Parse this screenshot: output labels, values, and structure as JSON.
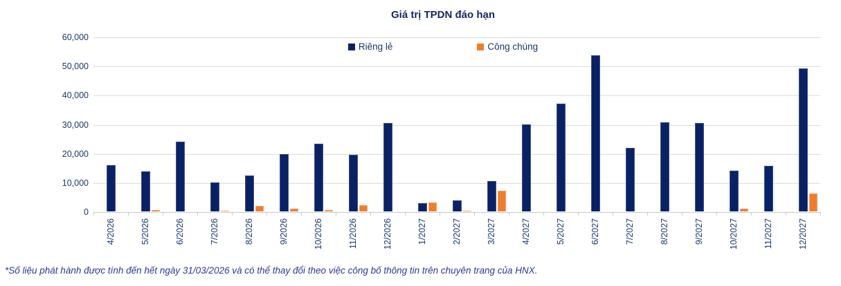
{
  "chart_data": {
    "type": "bar",
    "title": "Giá trị TPDN đáo hạn",
    "categories": [
      "4/2026",
      "5/2026",
      "6/2026",
      "7/2026",
      "8/2026",
      "9/2026",
      "10/2026",
      "11/2026",
      "12/2026",
      "1/2027",
      "2/2027",
      "3/2027",
      "4/2027",
      "5/2027",
      "6/2027",
      "7/2027",
      "8/2027",
      "9/2027",
      "10/2027",
      "11/2027",
      "12/2027"
    ],
    "series": [
      {
        "name": "Riêng lẻ",
        "color": "#0a2164",
        "values": [
          15800,
          13800,
          23900,
          9900,
          12400,
          19600,
          23300,
          19500,
          30300,
          2900,
          3800,
          10500,
          29800,
          37000,
          53500,
          21900,
          30600,
          30400,
          14100,
          15600,
          49100
        ]
      },
      {
        "name": "Công chúng",
        "color": "#ee7d2e",
        "values": [
          0,
          400,
          0,
          300,
          2000,
          1000,
          500,
          2100,
          0,
          3000,
          300,
          7100,
          0,
          0,
          0,
          0,
          0,
          0,
          1000,
          0,
          6200
        ]
      }
    ],
    "xlabel": "",
    "ylabel": "",
    "ylim": [
      0,
      60000
    ],
    "ytick_step": 10000,
    "ytick_labels": [
      "0",
      "10,000",
      "20,000",
      "30,000",
      "40,000",
      "50,000",
      "60,000"
    ],
    "grid": true,
    "legend_position": "top-center"
  },
  "footnote": "*Số liệu phát hành được tính đến hết ngày 31/03/2026 và có thể thay đổi theo việc công bố thông tin trên chuyên trang của HNX."
}
